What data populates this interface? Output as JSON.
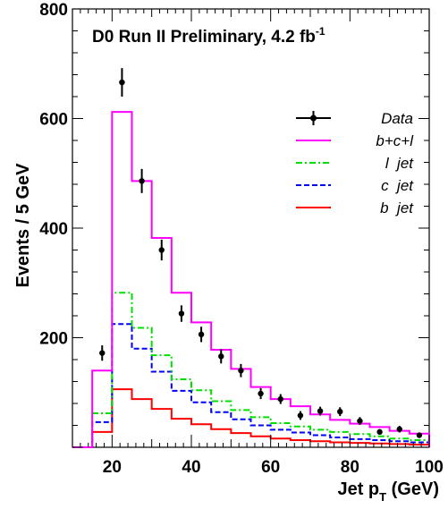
{
  "chart_data": {
    "type": "step-histogram",
    "title": "D0 Run II Preliminary, 4.2 fb",
    "title_superscript": "-1",
    "xlabel": "Jet p",
    "xlabel_subscript": "T",
    "xlabel_unit": " (GeV)",
    "ylabel": "Events / 5 GeV",
    "xlim": [
      10,
      100
    ],
    "ylim": [
      0,
      800
    ],
    "x_ticks": [
      "20",
      "40",
      "60",
      "80",
      "100"
    ],
    "y_ticks": [
      "200",
      "400",
      "600",
      "800"
    ],
    "bin_edges": [
      10,
      15,
      20,
      25,
      30,
      35,
      40,
      45,
      50,
      55,
      60,
      65,
      70,
      75,
      80,
      85,
      90,
      95,
      100
    ],
    "legend_position": "top-right",
    "series": [
      {
        "name": "b+c+l",
        "color": "#ff00ff",
        "style": "solid",
        "values": [
          0,
          140,
          612,
          486,
          382,
          282,
          228,
          178,
          143,
          110,
          88,
          75,
          60,
          50,
          43,
          37,
          30,
          25
        ]
      },
      {
        "name": "l  jet",
        "color": "#00e000",
        "style": "dashdot",
        "values": [
          0,
          62,
          282,
          218,
          168,
          124,
          104,
          84,
          68,
          55,
          44,
          38,
          32,
          28,
          24,
          20,
          16,
          13
        ]
      },
      {
        "name": "c  jet",
        "color": "#0000ff",
        "style": "dashed",
        "values": [
          0,
          46,
          225,
          180,
          138,
          103,
          82,
          64,
          51,
          40,
          32,
          27,
          22,
          18,
          15,
          13,
          11,
          9
        ]
      },
      {
        "name": "b  jet",
        "color": "#ff0000",
        "style": "solid",
        "values": [
          0,
          28,
          106,
          88,
          70,
          52,
          42,
          33,
          26,
          20,
          16,
          13,
          11,
          9,
          8,
          7,
          6,
          5
        ]
      }
    ],
    "data_points": {
      "name": "Data",
      "x": [
        17.5,
        22.5,
        27.5,
        32.5,
        37.5,
        42.5,
        47.5,
        52.5,
        57.5,
        62.5,
        67.5,
        72.5,
        77.5,
        82.5,
        87.5,
        92.5,
        97.5
      ],
      "y": [
        172,
        666,
        486,
        360,
        244,
        206,
        166,
        140,
        98,
        88,
        58,
        66,
        65,
        48,
        28,
        33,
        22
      ],
      "err": [
        14,
        26,
        22,
        19,
        15,
        14,
        13,
        12,
        10,
        9,
        8,
        8,
        8,
        7,
        5,
        6,
        5
      ]
    },
    "legend_entries": [
      "Data",
      "b+c+l",
      "l  jet",
      "c  jet",
      "b  jet"
    ]
  }
}
